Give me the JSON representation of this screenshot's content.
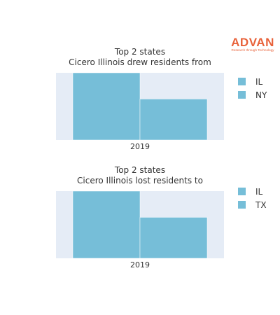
{
  "logo": {
    "word": "ADVAN",
    "tagline": "Research through Technology"
  },
  "chart_data": [
    {
      "type": "bar",
      "title_lines": [
        "Top 2 states",
        "Cicero Illinois drew residents from"
      ],
      "categories": [
        "2019"
      ],
      "series": [
        {
          "name": "IL",
          "values": [
            100
          ]
        },
        {
          "name": "NY",
          "values": [
            61
          ]
        }
      ],
      "ylim": [
        0,
        100
      ],
      "grid": false,
      "legend_position": "right",
      "colors": {
        "bar": "#76bed8",
        "plot_bg": "#e5ecf6"
      }
    },
    {
      "type": "bar",
      "title_lines": [
        "Top 2 states",
        "Cicero Illinois lost residents to"
      ],
      "categories": [
        "2019"
      ],
      "series": [
        {
          "name": "IL",
          "values": [
            100
          ]
        },
        {
          "name": "TX",
          "values": [
            61
          ]
        }
      ],
      "ylim": [
        0,
        100
      ],
      "grid": false,
      "legend_position": "right",
      "colors": {
        "bar": "#76bed8",
        "plot_bg": "#e5ecf6"
      }
    }
  ]
}
